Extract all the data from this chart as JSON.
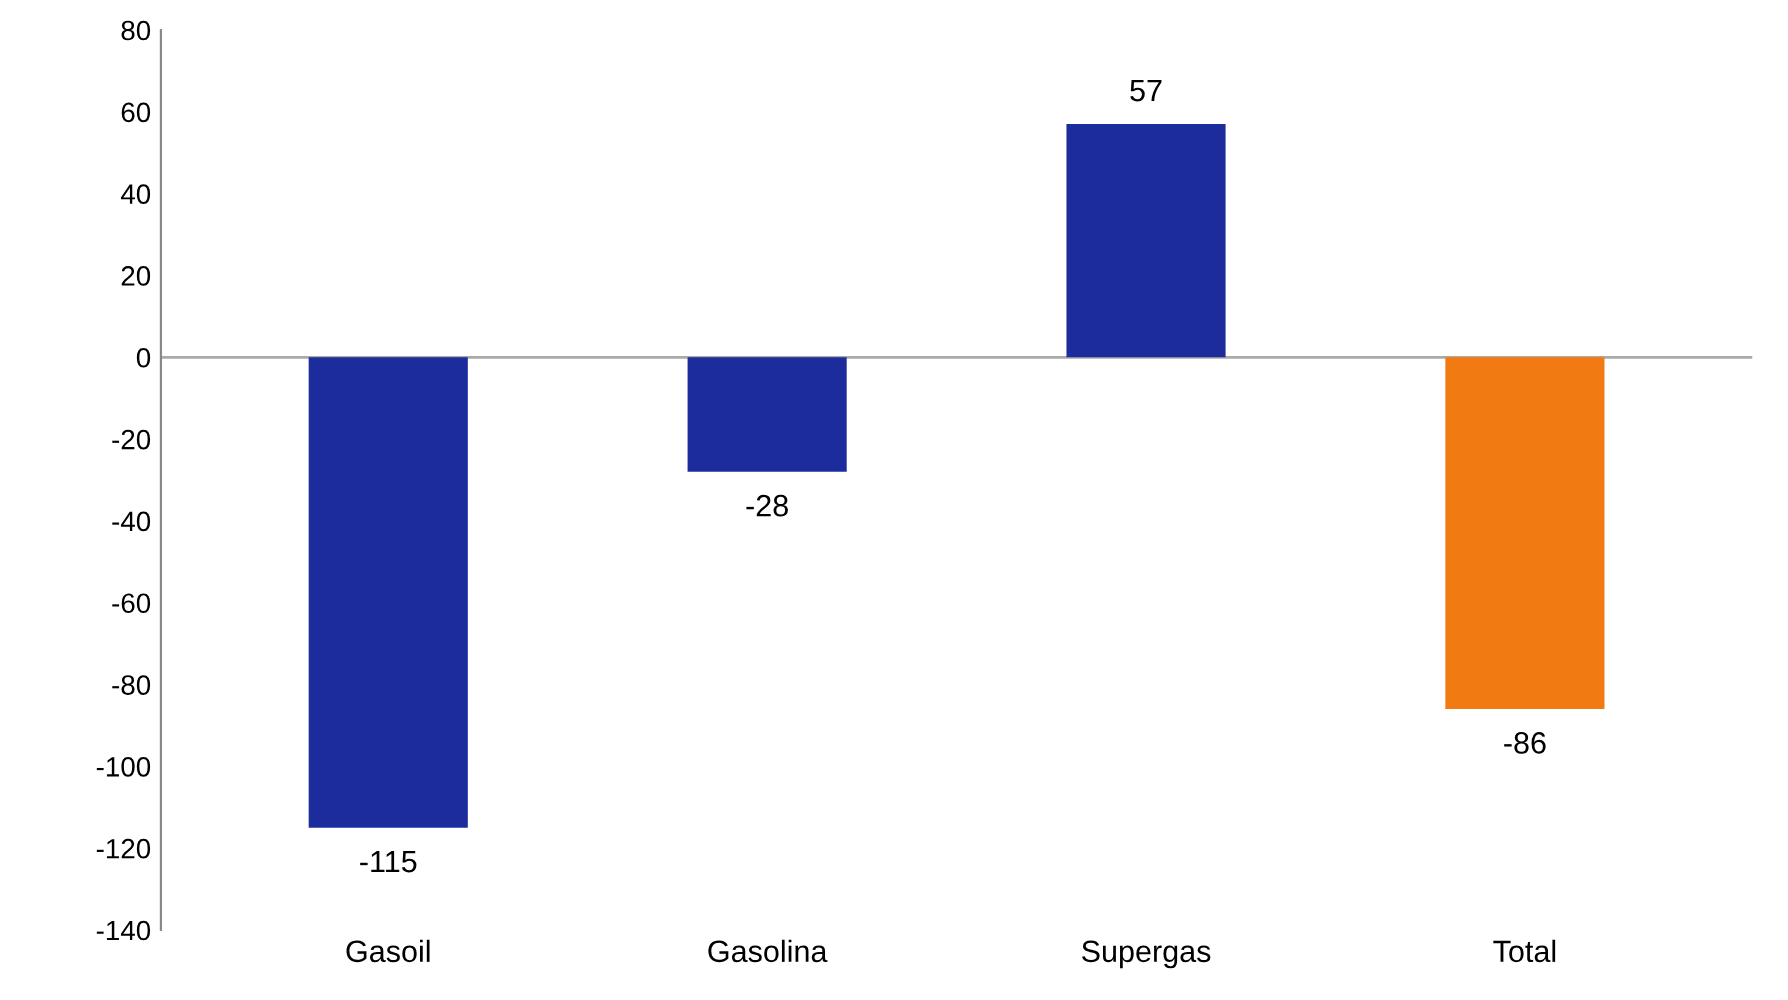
{
  "chart_data": {
    "type": "bar",
    "categories": [
      "Gasoil",
      "Gasolina",
      "Supergas",
      "Total"
    ],
    "values": [
      -115,
      -28,
      57,
      -86
    ],
    "colors": [
      "#1c2c9c",
      "#1c2c9c",
      "#1c2c9c",
      "#f27a12"
    ],
    "ylim": [
      -140,
      80
    ],
    "yticks": [
      -140,
      -120,
      -100,
      -80,
      -60,
      -40,
      -20,
      0,
      20,
      40,
      60,
      80
    ],
    "grid": false,
    "ref_lines": [
      {
        "axis": "y",
        "value": 0,
        "color": "#aaaaaa"
      }
    ],
    "data_labels": true
  }
}
